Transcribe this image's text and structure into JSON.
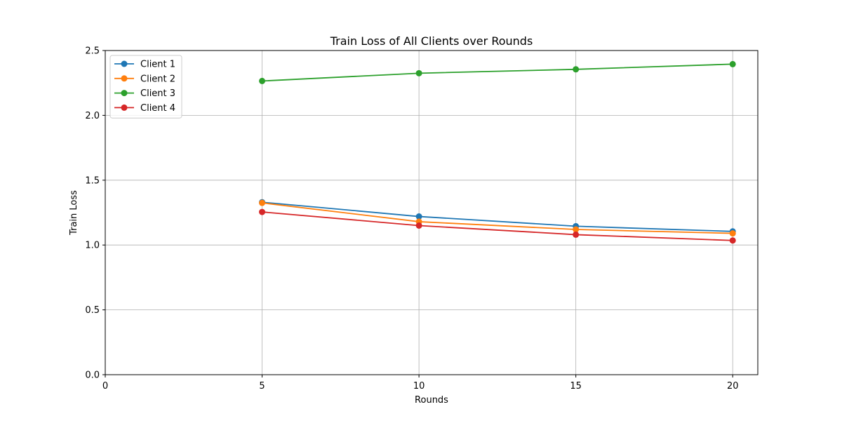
{
  "chart_data": {
    "type": "line",
    "title": "Train Loss of All Clients over Rounds",
    "xlabel": "Rounds",
    "ylabel": "Train Loss",
    "x": [
      5,
      10,
      15,
      20
    ],
    "xlim": [
      0,
      20.8
    ],
    "ylim": [
      0,
      2.5
    ],
    "xticks": [
      0,
      5,
      10,
      15,
      20
    ],
    "yticks": [
      0.0,
      0.5,
      1.0,
      1.5,
      2.0,
      2.5
    ],
    "xtick_labels": [
      "0",
      "5",
      "10",
      "15",
      "20"
    ],
    "ytick_labels": [
      "0.0",
      "0.5",
      "1.0",
      "1.5",
      "2.0",
      "2.5"
    ],
    "grid": true,
    "legend_position": "top-left",
    "series": [
      {
        "name": "Client 1",
        "color": "#1f77b4",
        "values": [
          1.33,
          1.22,
          1.145,
          1.105
        ]
      },
      {
        "name": "Client 2",
        "color": "#ff7f0e",
        "values": [
          1.325,
          1.18,
          1.12,
          1.09
        ]
      },
      {
        "name": "Client 3",
        "color": "#2ca02c",
        "values": [
          2.265,
          2.325,
          2.355,
          2.395
        ]
      },
      {
        "name": "Client 4",
        "color": "#d62728",
        "values": [
          1.255,
          1.15,
          1.08,
          1.035
        ]
      }
    ]
  }
}
